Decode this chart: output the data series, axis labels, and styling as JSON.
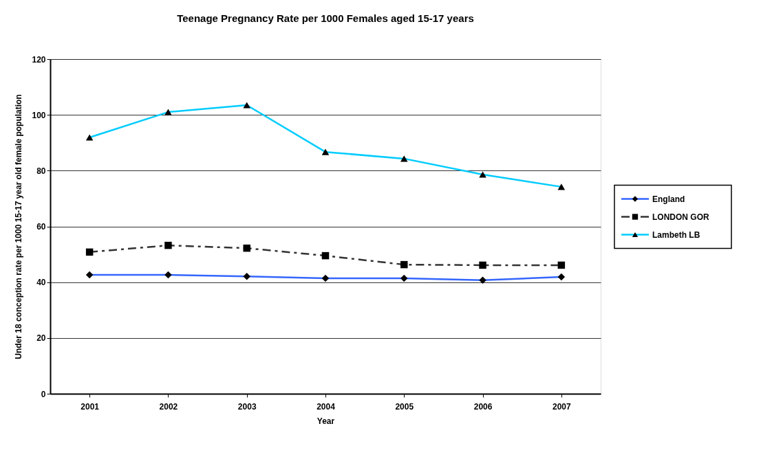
{
  "chart_data": {
    "type": "line",
    "title": "Teenage Pregnancy Rate per 1000 Females aged 15-17 years",
    "xlabel": "Year",
    "ylabel": "Under 18 conception rate per 1000 15-17 year old female population",
    "categories": [
      "2001",
      "2002",
      "2003",
      "2004",
      "2005",
      "2006",
      "2007"
    ],
    "series": [
      {
        "name": "England",
        "color": "#3366ff",
        "marker": "diamond",
        "line_style": "solid",
        "values": [
          42.6,
          42.6,
          42.1,
          41.4,
          41.4,
          40.7,
          41.9
        ]
      },
      {
        "name": "LONDON GOR",
        "color": "#333333",
        "marker": "square",
        "line_style": "dashed",
        "values": [
          50.8,
          53.2,
          52.2,
          49.5,
          46.3,
          46.1,
          46.1
        ]
      },
      {
        "name": "Lambeth LB",
        "color": "#00ccff",
        "marker": "triangle",
        "line_style": "solid",
        "values": [
          91.9,
          101.0,
          103.5,
          86.7,
          84.3,
          78.6,
          74.2
        ]
      }
    ],
    "ylim": [
      0,
      120
    ],
    "yticks": [
      0,
      20,
      40,
      60,
      80,
      100,
      120
    ],
    "grid": "y",
    "legend": "right"
  }
}
